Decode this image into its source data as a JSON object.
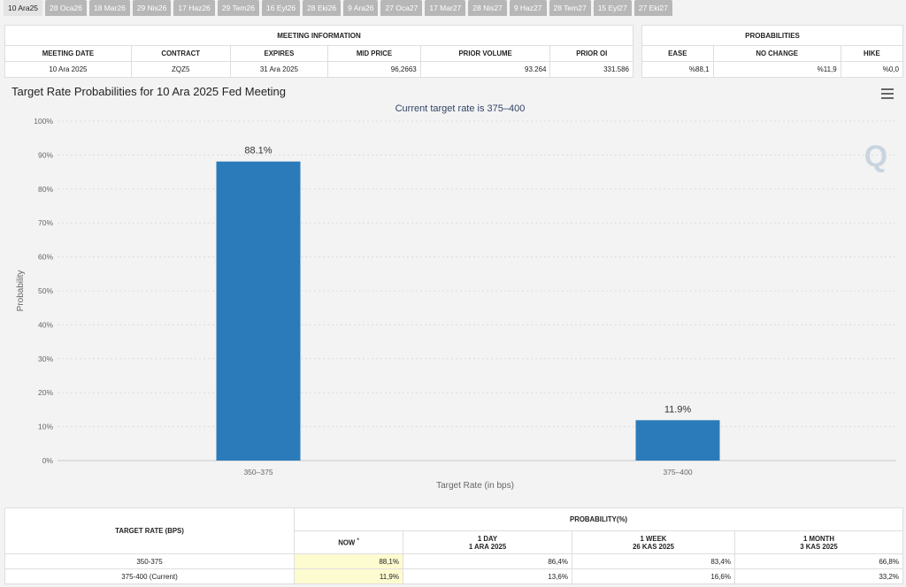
{
  "tabs": [
    {
      "label": "10 Ara25",
      "active": true
    },
    {
      "label": "28 Oca26"
    },
    {
      "label": "18 Mar26"
    },
    {
      "label": "29 Nis26"
    },
    {
      "label": "17 Haz26"
    },
    {
      "label": "29 Tem26"
    },
    {
      "label": "16 Eyl26"
    },
    {
      "label": "28 Eki26"
    },
    {
      "label": "9 Ara26"
    },
    {
      "label": "27 Oca27"
    },
    {
      "label": "17 Mar27"
    },
    {
      "label": "28 Nis27"
    },
    {
      "label": "9 Haz27"
    },
    {
      "label": "28 Tem27"
    },
    {
      "label": "15 Eyl27"
    },
    {
      "label": "27 Eki27"
    }
  ],
  "meeting_info": {
    "title": "MEETING INFORMATION",
    "headers": [
      "MEETING DATE",
      "CONTRACT",
      "EXPIRES",
      "MID PRICE",
      "PRIOR VOLUME",
      "PRIOR OI"
    ],
    "row": [
      "10 Ara 2025",
      "ZQZ5",
      "31 Ara 2025",
      "96,2663",
      "93.264",
      "331.586"
    ]
  },
  "probabilities": {
    "title": "PROBABILITIES",
    "headers": [
      "EASE",
      "NO CHANGE",
      "HIKE"
    ],
    "row": [
      "%88,1",
      "%11,9",
      "%0,0"
    ]
  },
  "chart": {
    "title": "Target Rate Probabilities for 10 Ara 2025 Fed Meeting",
    "menu_icon": "hamburger-menu-icon",
    "watermark": "Q"
  },
  "chart_data": {
    "type": "bar",
    "subtitle": "Current target rate is 375–400",
    "categories": [
      "350–375",
      "375–400"
    ],
    "values": [
      88.1,
      11.9
    ],
    "data_labels": [
      "88.1%",
      "11.9%"
    ],
    "xlabel": "Target Rate (in bps)",
    "ylabel": "Probability",
    "ylim": [
      0,
      100
    ],
    "yticks": [
      "0%",
      "10%",
      "20%",
      "30%",
      "40%",
      "50%",
      "60%",
      "70%",
      "80%",
      "90%",
      "100%"
    ],
    "grid": true,
    "bar_color": "#2b7bba"
  },
  "rate_table": {
    "col_target": "TARGET RATE (BPS)",
    "col_prob": "PROBABILITY(%)",
    "now": "NOW",
    "now_mark": "*",
    "periods": [
      {
        "l1": "1 DAY",
        "l2": "1 ARA 2025"
      },
      {
        "l1": "1 WEEK",
        "l2": "26 KAS 2025"
      },
      {
        "l1": "1 MONTH",
        "l2": "3 KAS 2025"
      }
    ],
    "rows": [
      {
        "rate": "350-375",
        "now": "88,1%",
        "d1": "86,4%",
        "w1": "83,4%",
        "m1": "66,8%"
      },
      {
        "rate": "375-400 (Current)",
        "now": "11,9%",
        "d1": "13,6%",
        "w1": "16,6%",
        "m1": "33,2%"
      }
    ]
  },
  "colors": {
    "highlight": "#fdfbd0",
    "bar": "#2b7bba",
    "subtitle": "#334466"
  }
}
